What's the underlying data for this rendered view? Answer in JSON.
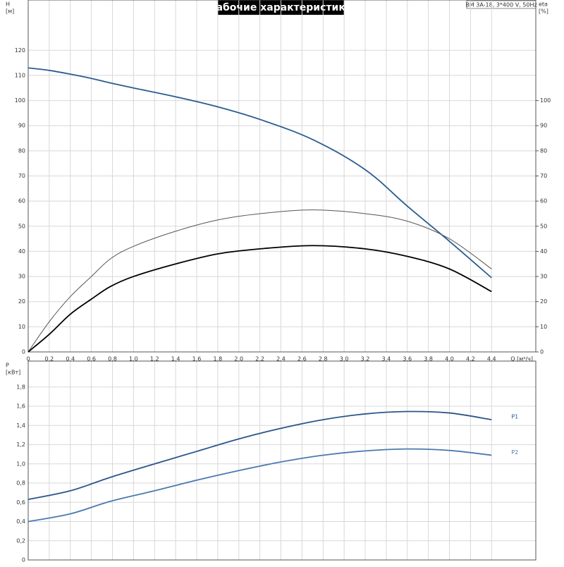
{
  "chart_data": [
    {
      "type": "line",
      "title": "Рабочие характеристики",
      "subtitle": "BM 3A-18, 3*400 V, 50Hz",
      "y_label": "H",
      "y_unit": "[м]",
      "y2_label": "eta",
      "y2_unit": "[%]",
      "x_label": "Q [м³/ч]",
      "x": [
        0,
        0.2,
        0.4,
        0.6,
        0.78,
        1.0,
        1.4,
        1.8,
        2.2,
        2.7,
        3.2,
        3.6,
        4.0,
        4.4
      ],
      "series": [
        {
          "color": "#2a5d8f",
          "values": [
            113,
            112,
            110.5,
            108.8,
            107,
            105,
            101.5,
            97.5,
            92.5,
            84.5,
            72.5,
            58,
            44,
            29.5
          ]
        },
        {
          "color": "#555555",
          "axis": "y2",
          "values": [
            0,
            12,
            22,
            30,
            37,
            42,
            48,
            52.5,
            55,
            56.5,
            55,
            52,
            45,
            33
          ]
        },
        {
          "color": "#000000",
          "axis": "y2",
          "values": [
            0,
            7,
            15,
            21,
            26,
            30,
            35,
            39,
            41,
            42.3,
            41,
            38,
            33,
            24
          ]
        }
      ],
      "xlim": [
        0,
        4.82
      ],
      "ylim": [
        0,
        140
      ],
      "y2lim": [
        0,
        140
      ],
      "xticks": [
        0,
        {
          "value": 0.2,
          "label": "0,2"
        },
        {
          "value": 0.4,
          "label": "0,4"
        },
        {
          "value": 0.6,
          "label": "0,6"
        },
        {
          "value": 0.8,
          "label": "0,8"
        },
        {
          "value": 1.0,
          "label": "1,0"
        },
        {
          "value": 1.2,
          "label": "1,2"
        },
        {
          "value": 1.4,
          "label": "1,4"
        },
        {
          "value": 1.6,
          "label": "1,6"
        },
        {
          "value": 1.8,
          "label": "1,8"
        },
        {
          "value": 2.0,
          "label": "2,0"
        },
        {
          "value": 2.2,
          "label": "2,2"
        },
        {
          "value": 2.4,
          "label": "2,4"
        },
        {
          "value": 2.6,
          "label": "2,6"
        },
        {
          "value": 2.8,
          "label": "2,8"
        },
        {
          "value": 3.0,
          "label": "3,0"
        },
        {
          "value": 3.2,
          "label": "3,2"
        },
        {
          "value": 3.4,
          "label": "3,4"
        },
        {
          "value": 3.6,
          "label": "3,6"
        },
        {
          "value": 3.8,
          "label": "3,8"
        },
        {
          "value": 4.0,
          "label": "4,0"
        },
        {
          "value": 4.2,
          "label": "4,2"
        },
        {
          "value": 4.4,
          "label": "4,4"
        }
      ],
      "yticks": [
        0,
        10,
        20,
        30,
        40,
        50,
        60,
        70,
        80,
        90,
        100,
        110,
        120
      ],
      "y2ticks": [
        0,
        10,
        20,
        30,
        40,
        50,
        60,
        70,
        80,
        90,
        100
      ],
      "grid": true
    },
    {
      "type": "line",
      "y_label": "P",
      "y_unit": "[кВт]",
      "x": [
        0,
        0.4,
        0.78,
        1.2,
        1.6,
        2.0,
        2.4,
        2.8,
        3.2,
        3.6,
        4.0,
        4.4
      ],
      "series": [
        {
          "name": "P1",
          "color": "#2a5588",
          "values": [
            0.63,
            0.72,
            0.86,
            1.0,
            1.13,
            1.26,
            1.37,
            1.46,
            1.52,
            1.545,
            1.53,
            1.46
          ]
        },
        {
          "name": "P2",
          "color": "#4a7ab0",
          "values": [
            0.4,
            0.48,
            0.61,
            0.72,
            0.83,
            0.93,
            1.02,
            1.09,
            1.135,
            1.155,
            1.14,
            1.09
          ]
        }
      ],
      "xlim": [
        0,
        4.82
      ],
      "ylim": [
        0,
        2.07
      ],
      "xticks": [
        0,
        0.2,
        0.4,
        0.6,
        0.8,
        1.0,
        1.2,
        1.4,
        1.6,
        1.8,
        2.0,
        2.2,
        2.4,
        2.6,
        2.8,
        3.0,
        3.2,
        3.4,
        3.6,
        3.8,
        4.0,
        4.2,
        4.4
      ],
      "yticks": [
        0,
        {
          "value": 0.2,
          "label": "0,2"
        },
        {
          "value": 0.4,
          "label": "0,4"
        },
        {
          "value": 0.6,
          "label": "0,6"
        },
        {
          "value": 0.8,
          "label": "0,8"
        },
        {
          "value": 1.0,
          "label": "1,0"
        },
        {
          "value": 1.2,
          "label": "1,2"
        },
        {
          "value": 1.4,
          "label": "1,4"
        },
        {
          "value": 1.6,
          "label": "1,6"
        },
        {
          "value": 1.8,
          "label": "1,8"
        }
      ],
      "grid": true
    }
  ]
}
